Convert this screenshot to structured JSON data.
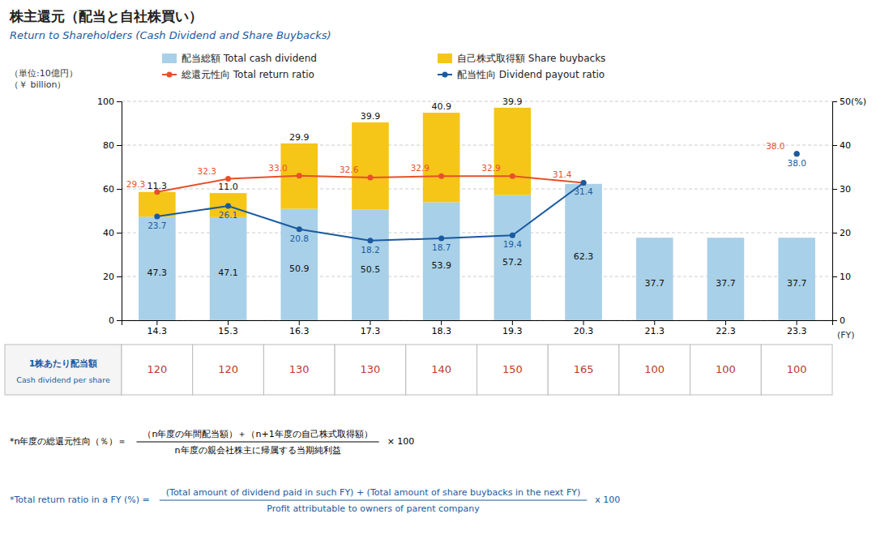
{
  "chart_data": {
    "type": "bar",
    "title": "株主還元（配当と自社株買い）",
    "subtitle": "Return to Shareholders (Cash Dividend and Share Buybacks)",
    "xlabel": "(FY)",
    "ylabel": [
      "（単位:10億円）",
      "（￥ billion）"
    ],
    "categories": [
      "14.3",
      "15.3",
      "16.3",
      "17.3",
      "18.3",
      "19.3",
      "20.3",
      "21.3",
      "22.3",
      "23.3"
    ],
    "stacked": true,
    "grid": true,
    "legend": "top",
    "ylim": [
      0,
      100
    ],
    "yticks": [
      0,
      20,
      40,
      60,
      80,
      100
    ],
    "y2lim": [
      0,
      50
    ],
    "y2ticks": [
      0,
      10,
      20,
      30,
      40,
      {
        "value": 50,
        "label": "50(%)"
      }
    ],
    "series": [
      {
        "name": "配当総額 Total cash dividend",
        "type": "bar",
        "color": "#a8d0e8",
        "data_labels": true,
        "values": [
          47.3,
          47.1,
          50.9,
          50.5,
          53.9,
          57.2,
          62.3,
          37.7,
          37.7,
          37.7
        ]
      },
      {
        "name": "自己株式取得額 Share buybacks",
        "type": "bar",
        "color": "#f5c518",
        "data_labels": true,
        "values": [
          11.3,
          11.0,
          29.9,
          39.9,
          40.9,
          39.9,
          0.0,
          0.0,
          0.0,
          0.0
        ],
        "value_labels": [
          "11.3",
          "11.0",
          "29.9",
          "39.9",
          "40.9",
          "39.9",
          null,
          null,
          null,
          null
        ]
      },
      {
        "name": "総還元性向 Total return ratio",
        "type": "line",
        "axis": "y2",
        "color": "#e8502a",
        "marker": "circle",
        "data_labels": true,
        "values": [
          29.3,
          32.3,
          33.0,
          32.6,
          32.9,
          32.9,
          31.4,
          null,
          null,
          38.0
        ],
        "value_labels": [
          "29.3",
          "32.3",
          "33.0",
          "32.6",
          "32.9",
          "32.9",
          "31.4",
          null,
          null,
          "38.0"
        ]
      },
      {
        "name": "配当性向 Dividend payout ratio",
        "type": "line",
        "axis": "y2",
        "color": "#1a5aa0",
        "marker": "circle",
        "data_labels": true,
        "values": [
          23.7,
          26.1,
          20.8,
          18.2,
          18.7,
          19.4,
          31.4,
          null,
          null,
          38.0
        ],
        "value_labels": [
          "23.7",
          "26.1",
          "20.8",
          "18.2",
          "18.7",
          "19.4",
          "31.4",
          null,
          null,
          "38.0"
        ]
      }
    ],
    "table": {
      "title": [
        "1株あたり配当額",
        "Cash dividend per share"
      ],
      "values": [
        120,
        120,
        130,
        130,
        140,
        150,
        165,
        100,
        100,
        100
      ],
      "color": "#c0392b"
    },
    "formulas": [
      {
        "lhs": "*n年度の総還元性向（％）＝",
        "numerator": "（n年度の年間配当額）＋（n+1年度の自己株式取得額）",
        "denominator": "n年度の親会社株主に帰属する当期純利益",
        "factor": "× 100",
        "color": "#000000"
      },
      {
        "lhs": "*Total return ratio in a FY (%) =",
        "numerator": "(Total amount of dividend paid in such FY) + (Total amount of share buybacks in the next FY)",
        "denominator": "Profit attributable to owners of parent company",
        "factor": "x 100",
        "color": "#1a5aa0"
      }
    ]
  }
}
